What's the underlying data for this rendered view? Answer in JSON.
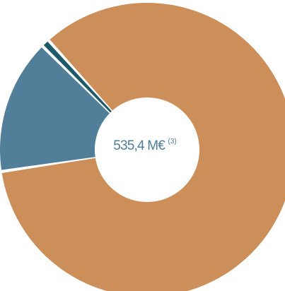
{
  "chart_data": {
    "type": "pie",
    "variant": "donut",
    "center_label": {
      "value": "535,4 M€",
      "footnote": "(3)"
    },
    "slices": [
      {
        "value": 84.3,
        "color": "#cd8f5a"
      },
      {
        "value": 14.8,
        "color": "#517e99"
      },
      {
        "value": 0.9,
        "color": "#1e5a6c"
      }
    ]
  }
}
